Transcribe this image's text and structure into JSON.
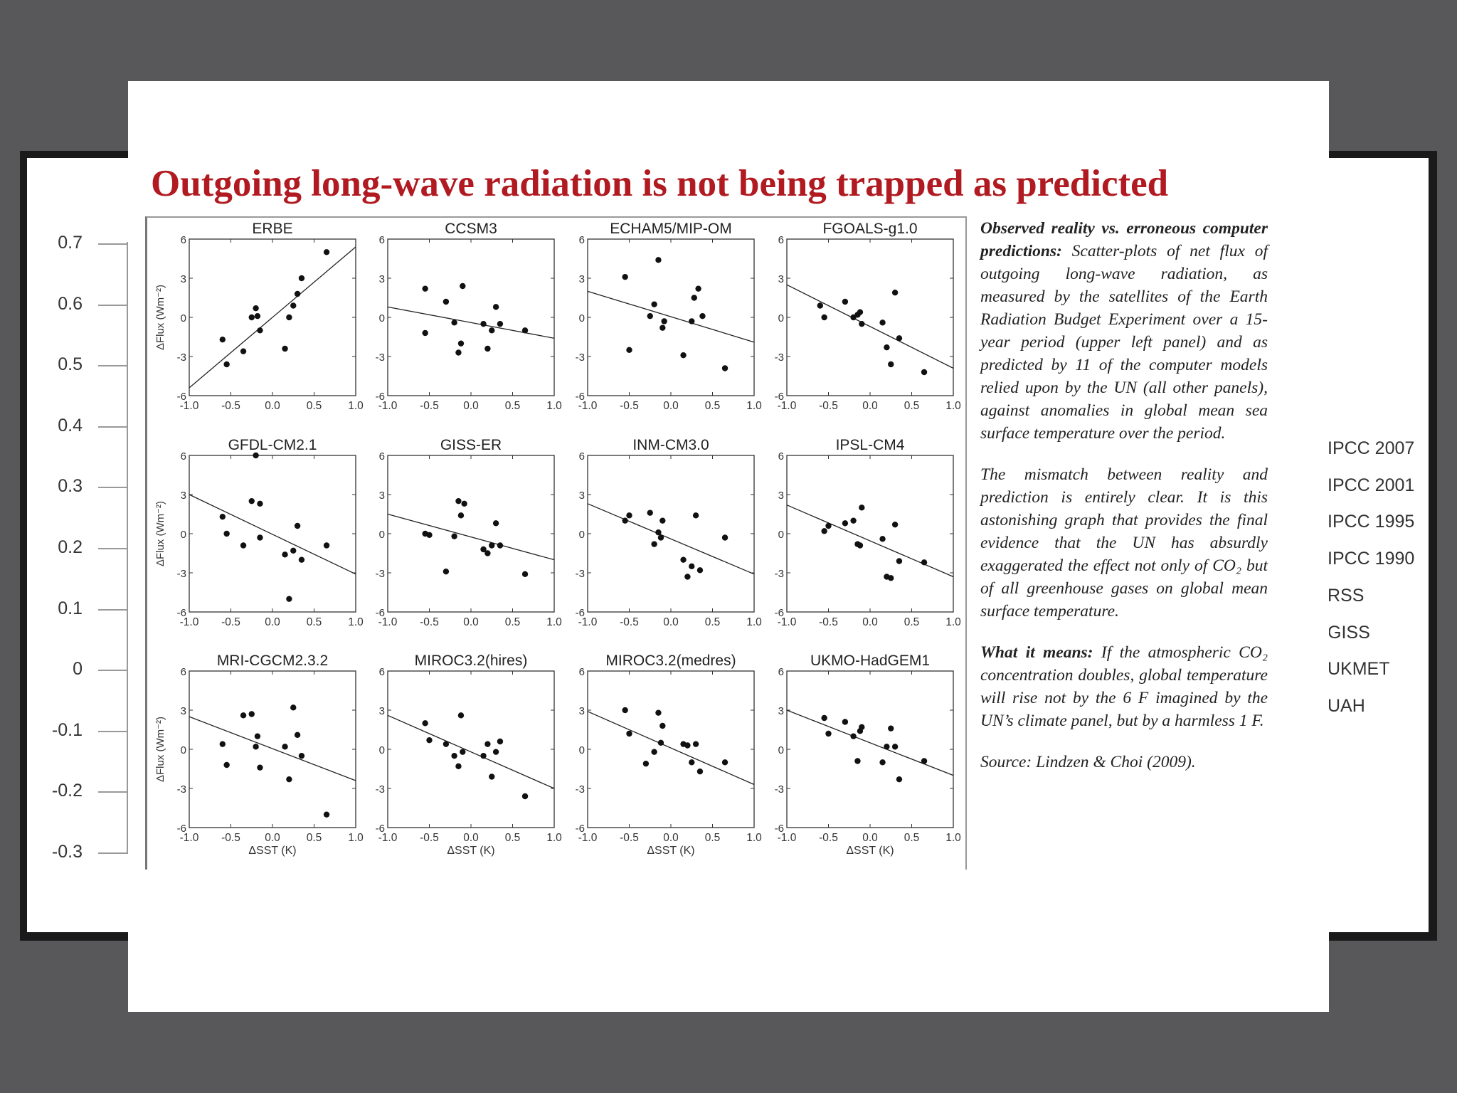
{
  "title": "Outgoing long-wave radiation is not being trapped as predicted",
  "background_slide": {
    "y_ticks": [
      "0.7",
      "0.6",
      "0.5",
      "0.4",
      "0.3",
      "0.2",
      "0.1",
      "0",
      "-0.1",
      "-0.2",
      "-0.3"
    ],
    "legend": [
      "IPCC 2007",
      "IPCC 2001",
      "IPCC 1995",
      "IPCC 1990",
      "RSS",
      "GISS",
      "UKMET",
      "UAH"
    ]
  },
  "caption": {
    "p1_bold": "Observed reality vs. erroneous computer predictions:",
    "p1": " Scatter-plots of net flux of outgoing long-wave radiation, as measured by the satellites of the Earth Radiation Budget Experiment over a 15-year period (upper left panel) and as predicted by 11 of the computer models relied upon by the UN (all other panels), against anomalies in global mean sea surface temperature over the period.",
    "p2": "The mismatch between reality and prediction is entirely clear. It is this astonishing graph that provides the final evidence that the UN has absurdly exaggerated the effect not only of CO₂ but of all greenhouse gases on global mean surface temperature.",
    "p3_bold": "What it means:",
    "p3": " If the atmospheric CO₂ concentration doubles, global temperature will rise not by the 6 F imagined by the UN’s climate panel, but by a harmless 1 F.",
    "p4": "Source: Lindzen & Choi (2009)."
  },
  "chart_data": {
    "type": "scatter",
    "xlabel": "ΔSST (K)",
    "ylabel": "ΔFlux (Wm⁻²)",
    "xlim": [
      -1.0,
      1.0
    ],
    "ylim": [
      -6,
      6
    ],
    "x_ticks": [
      "-1.0",
      "-0.5",
      "0.0",
      "0.5",
      "1.0"
    ],
    "y_ticks": [
      "6",
      "3",
      "0",
      "-3",
      "-6"
    ],
    "panels": [
      {
        "name": "ERBE",
        "line": [
          [
            -1.0,
            -5.4
          ],
          [
            1.0,
            5.4
          ]
        ],
        "points": [
          [
            -0.6,
            -1.7
          ],
          [
            -0.55,
            -3.6
          ],
          [
            -0.35,
            -2.6
          ],
          [
            -0.25,
            0.0
          ],
          [
            -0.2,
            0.7
          ],
          [
            -0.18,
            0.1
          ],
          [
            -0.15,
            -1.0
          ],
          [
            0.15,
            -2.4
          ],
          [
            0.2,
            0.0
          ],
          [
            0.25,
            0.9
          ],
          [
            0.3,
            1.8
          ],
          [
            0.35,
            3.0
          ],
          [
            0.65,
            5.0
          ]
        ]
      },
      {
        "name": "CCSM3",
        "line": [
          [
            -1.0,
            0.8
          ],
          [
            1.0,
            -1.6
          ]
        ],
        "points": [
          [
            -0.55,
            2.2
          ],
          [
            -0.55,
            -1.2
          ],
          [
            -0.3,
            1.2
          ],
          [
            -0.2,
            -0.4
          ],
          [
            -0.15,
            -2.7
          ],
          [
            -0.12,
            -2.0
          ],
          [
            -0.1,
            2.4
          ],
          [
            0.15,
            -0.5
          ],
          [
            0.2,
            -2.4
          ],
          [
            0.25,
            -1.0
          ],
          [
            0.3,
            0.8
          ],
          [
            0.35,
            -0.5
          ],
          [
            0.65,
            -1.0
          ]
        ]
      },
      {
        "name": "ECHAM5/MIP-OM",
        "line": [
          [
            -1.0,
            2.0
          ],
          [
            1.0,
            -1.9
          ]
        ],
        "points": [
          [
            -0.55,
            3.1
          ],
          [
            -0.5,
            -2.5
          ],
          [
            -0.25,
            0.1
          ],
          [
            -0.2,
            1.0
          ],
          [
            -0.15,
            4.4
          ],
          [
            -0.1,
            -0.8
          ],
          [
            -0.08,
            -0.3
          ],
          [
            0.15,
            -2.9
          ],
          [
            0.25,
            -0.3
          ],
          [
            0.28,
            1.5
          ],
          [
            0.33,
            2.2
          ],
          [
            0.38,
            0.1
          ],
          [
            0.65,
            -3.9
          ]
        ]
      },
      {
        "name": "FGOALS-g1.0",
        "line": [
          [
            -1.0,
            2.5
          ],
          [
            1.0,
            -3.9
          ]
        ],
        "points": [
          [
            -0.6,
            0.9
          ],
          [
            -0.55,
            0.0
          ],
          [
            -0.3,
            1.2
          ],
          [
            -0.2,
            0.0
          ],
          [
            -0.15,
            0.2
          ],
          [
            -0.12,
            0.4
          ],
          [
            -0.1,
            -0.5
          ],
          [
            0.15,
            -0.4
          ],
          [
            0.2,
            -2.3
          ],
          [
            0.25,
            -3.6
          ],
          [
            0.3,
            1.9
          ],
          [
            0.35,
            -1.6
          ],
          [
            0.65,
            -4.2
          ]
        ]
      },
      {
        "name": "GFDL-CM2.1",
        "line": [
          [
            -1.0,
            3.0
          ],
          [
            1.0,
            -3.1
          ]
        ],
        "points": [
          [
            -0.6,
            1.3
          ],
          [
            -0.55,
            0.0
          ],
          [
            -0.35,
            -0.9
          ],
          [
            -0.25,
            2.5
          ],
          [
            -0.2,
            6.0
          ],
          [
            -0.15,
            2.3
          ],
          [
            -0.15,
            -0.3
          ],
          [
            0.15,
            -1.6
          ],
          [
            0.2,
            -5.0
          ],
          [
            0.25,
            -1.3
          ],
          [
            0.3,
            0.6
          ],
          [
            0.35,
            -2.0
          ],
          [
            0.65,
            -0.9
          ]
        ]
      },
      {
        "name": "GISS-ER",
        "line": [
          [
            -1.0,
            1.5
          ],
          [
            1.0,
            -2.0
          ]
        ],
        "points": [
          [
            -0.55,
            0.0
          ],
          [
            -0.5,
            -0.1
          ],
          [
            -0.3,
            -2.9
          ],
          [
            -0.2,
            -0.2
          ],
          [
            -0.15,
            2.5
          ],
          [
            -0.12,
            1.4
          ],
          [
            -0.08,
            2.3
          ],
          [
            0.15,
            -1.2
          ],
          [
            0.2,
            -1.5
          ],
          [
            0.25,
            -0.9
          ],
          [
            0.3,
            0.8
          ],
          [
            0.35,
            -0.9
          ],
          [
            0.65,
            -3.1
          ]
        ]
      },
      {
        "name": "INM-CM3.0",
        "line": [
          [
            -1.0,
            2.3
          ],
          [
            1.0,
            -3.1
          ]
        ],
        "points": [
          [
            -0.55,
            1.0
          ],
          [
            -0.5,
            1.4
          ],
          [
            -0.25,
            1.6
          ],
          [
            -0.2,
            -0.8
          ],
          [
            -0.15,
            0.1
          ],
          [
            -0.12,
            -0.3
          ],
          [
            -0.1,
            1.0
          ],
          [
            0.15,
            -2.0
          ],
          [
            0.2,
            -3.3
          ],
          [
            0.25,
            -2.5
          ],
          [
            0.3,
            1.4
          ],
          [
            0.35,
            -2.8
          ],
          [
            0.65,
            -0.3
          ]
        ]
      },
      {
        "name": "IPSL-CM4",
        "line": [
          [
            -1.0,
            2.2
          ],
          [
            1.0,
            -3.3
          ]
        ],
        "points": [
          [
            -0.55,
            0.2
          ],
          [
            -0.5,
            0.6
          ],
          [
            -0.3,
            0.8
          ],
          [
            -0.2,
            1.0
          ],
          [
            -0.15,
            -0.8
          ],
          [
            -0.12,
            -0.9
          ],
          [
            -0.1,
            2.0
          ],
          [
            0.15,
            -0.4
          ],
          [
            0.2,
            -3.3
          ],
          [
            0.25,
            -3.4
          ],
          [
            0.3,
            0.7
          ],
          [
            0.35,
            -2.1
          ],
          [
            0.65,
            -2.2
          ]
        ]
      },
      {
        "name": "MRI-CGCM2.3.2",
        "line": [
          [
            -1.0,
            2.5
          ],
          [
            1.0,
            -2.4
          ]
        ],
        "points": [
          [
            -0.6,
            0.4
          ],
          [
            -0.55,
            -1.2
          ],
          [
            -0.35,
            2.6
          ],
          [
            -0.25,
            2.7
          ],
          [
            -0.2,
            0.2
          ],
          [
            -0.18,
            1.0
          ],
          [
            -0.15,
            -1.4
          ],
          [
            0.15,
            0.2
          ],
          [
            0.2,
            -2.3
          ],
          [
            0.25,
            3.2
          ],
          [
            0.3,
            1.1
          ],
          [
            0.35,
            -0.5
          ],
          [
            0.65,
            -5.0
          ]
        ]
      },
      {
        "name": "MIROC3.2(hires)",
        "line": [
          [
            -1.0,
            2.6
          ],
          [
            1.0,
            -3.0
          ]
        ],
        "points": [
          [
            -0.55,
            2.0
          ],
          [
            -0.5,
            0.7
          ],
          [
            -0.3,
            0.4
          ],
          [
            -0.2,
            -0.5
          ],
          [
            -0.15,
            -1.3
          ],
          [
            -0.12,
            2.6
          ],
          [
            -0.1,
            -0.2
          ],
          [
            0.15,
            -0.5
          ],
          [
            0.2,
            0.4
          ],
          [
            0.25,
            -2.1
          ],
          [
            0.3,
            -0.2
          ],
          [
            0.35,
            0.6
          ],
          [
            0.65,
            -3.6
          ]
        ]
      },
      {
        "name": "MIROC3.2(medres)",
        "line": [
          [
            -1.0,
            2.9
          ],
          [
            1.0,
            -2.7
          ]
        ],
        "points": [
          [
            -0.55,
            3.0
          ],
          [
            -0.5,
            1.2
          ],
          [
            -0.3,
            -1.1
          ],
          [
            -0.2,
            -0.2
          ],
          [
            -0.15,
            2.8
          ],
          [
            -0.12,
            0.5
          ],
          [
            -0.1,
            1.8
          ],
          [
            0.15,
            0.4
          ],
          [
            0.2,
            0.3
          ],
          [
            0.25,
            -1.0
          ],
          [
            0.3,
            0.4
          ],
          [
            0.35,
            -1.7
          ],
          [
            0.65,
            -1.0
          ]
        ]
      },
      {
        "name": "UKMO-HadGEM1",
        "line": [
          [
            -1.0,
            3.0
          ],
          [
            1.0,
            -2.0
          ]
        ],
        "points": [
          [
            -0.55,
            2.4
          ],
          [
            -0.5,
            1.2
          ],
          [
            -0.3,
            2.1
          ],
          [
            -0.2,
            1.0
          ],
          [
            -0.15,
            -0.9
          ],
          [
            -0.12,
            1.4
          ],
          [
            -0.1,
            1.7
          ],
          [
            0.15,
            -1.0
          ],
          [
            0.2,
            0.2
          ],
          [
            0.25,
            1.6
          ],
          [
            0.3,
            0.2
          ],
          [
            0.35,
            -2.3
          ],
          [
            0.65,
            -0.9
          ]
        ]
      }
    ]
  }
}
